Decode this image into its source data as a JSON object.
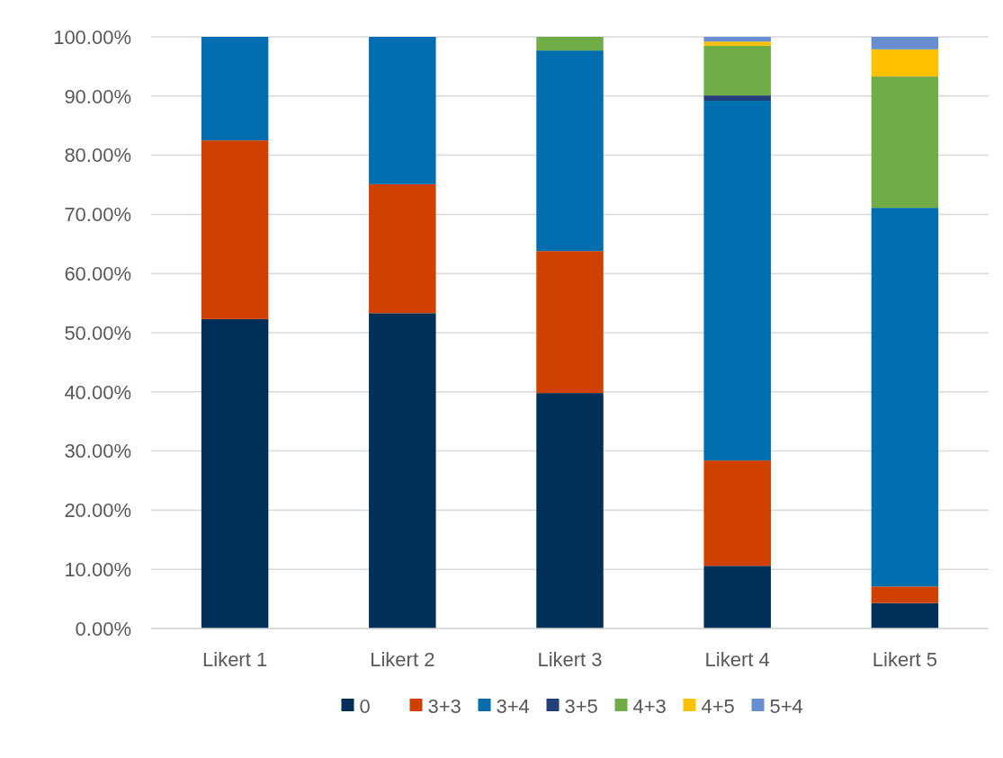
{
  "chart_data": {
    "type": "bar",
    "stacked": true,
    "categories": [
      "Likert 1",
      "Likert 2",
      "Likert 3",
      "Likert 4",
      "Likert 5"
    ],
    "series": [
      {
        "name": "0",
        "color": "#003057",
        "values": [
          52.3,
          53.3,
          39.8,
          10.6,
          4.3
        ]
      },
      {
        "name": "3+3",
        "color": "#d04000",
        "values": [
          30.2,
          21.8,
          24.0,
          17.8,
          2.8
        ]
      },
      {
        "name": "3+4",
        "color": "#006eaf",
        "values": [
          17.5,
          24.9,
          33.9,
          60.8,
          64.0
        ]
      },
      {
        "name": "3+5",
        "color": "#223f7a",
        "values": [
          0,
          0,
          0,
          0.9,
          0
        ]
      },
      {
        "name": "4+3",
        "color": "#70ad47",
        "values": [
          0,
          0,
          2.3,
          8.4,
          22.2
        ]
      },
      {
        "name": "4+5",
        "color": "#ffc000",
        "values": [
          0,
          0,
          0,
          0.7,
          4.6
        ]
      },
      {
        "name": "5+4",
        "color": "#698ed0",
        "values": [
          0,
          0,
          0,
          0.8,
          2.1
        ]
      }
    ],
    "ylim": [
      0,
      100
    ],
    "yticks": [
      {
        "value": 0,
        "label": "0.00%"
      },
      {
        "value": 10,
        "label": "10.00%"
      },
      {
        "value": 20,
        "label": "20.00%"
      },
      {
        "value": 30,
        "label": "30.00%"
      },
      {
        "value": 40,
        "label": "40.00%"
      },
      {
        "value": 50,
        "label": "50.00%"
      },
      {
        "value": 60,
        "label": "60.00%"
      },
      {
        "value": 70,
        "label": "70.00%"
      },
      {
        "value": 80,
        "label": "80.00%"
      },
      {
        "value": 90,
        "label": "90.00%"
      },
      {
        "value": 100,
        "label": "100.00%"
      }
    ],
    "grid": "y",
    "legend": "bottom"
  }
}
